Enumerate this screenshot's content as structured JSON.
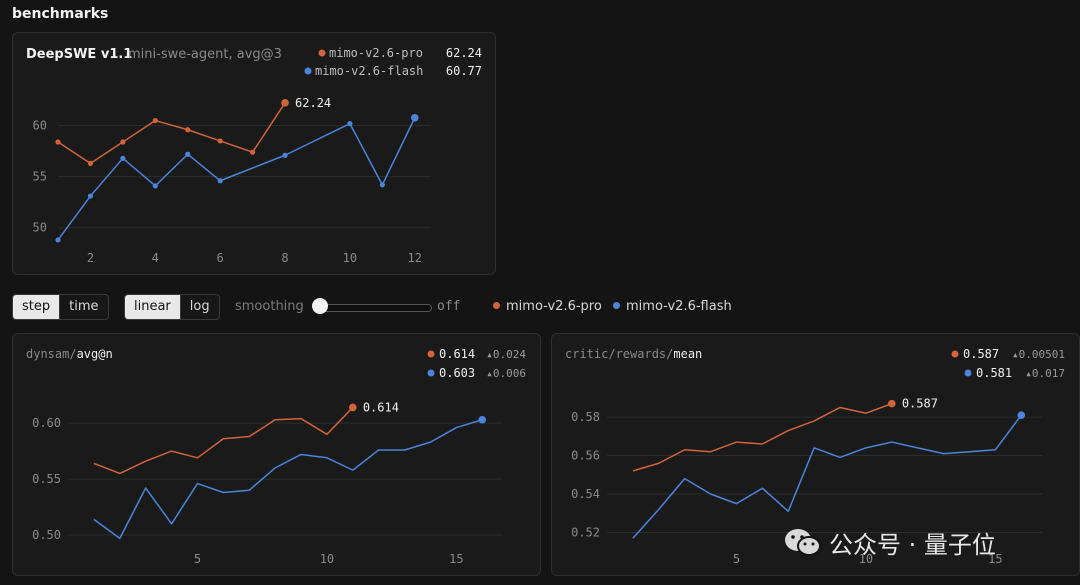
{
  "header": {
    "title": "benchmarks"
  },
  "colors": {
    "pro": "#d2643a",
    "flash": "#4b84dc",
    "grid": "#2c2c2c",
    "tick": "#8a8a8a"
  },
  "controls": {
    "xaxis_options": [
      "step",
      "time"
    ],
    "xaxis_selected": "step",
    "scale_options": [
      "linear",
      "log"
    ],
    "scale_selected": "linear",
    "smoothing_label": "smoothing",
    "smoothing_state": "off",
    "smoothing_value": 0,
    "legend": [
      "mimo-v2.6-pro",
      "mimo-v2.6-flash"
    ]
  },
  "watermark": {
    "text": "公众号 · 量子位",
    "icon": "wechat-icon"
  },
  "chart_data": [
    {
      "type": "line",
      "title": "DeepSWE v1.1",
      "subtitle": "mini-swe-agent, avg@3",
      "legend": [
        {
          "name": "mimo-v2.6-pro",
          "value": "62.24"
        },
        {
          "name": "mimo-v2.6-flash",
          "value": "60.77"
        }
      ],
      "xticks": [
        2,
        4,
        6,
        8,
        10,
        12
      ],
      "yticks": [
        50,
        55,
        60
      ],
      "xlim": [
        1,
        12.5
      ],
      "ylim": [
        48.5,
        63.2
      ],
      "grid": true,
      "series": [
        {
          "name": "mimo-v2.6-pro",
          "color_key": "pro",
          "end_label": "62.24",
          "x": [
            1,
            2,
            3,
            4,
            5,
            6,
            7,
            8
          ],
          "y": [
            58.4,
            56.3,
            58.4,
            60.5,
            59.6,
            58.5,
            57.4,
            62.24
          ]
        },
        {
          "name": "mimo-v2.6-flash",
          "color_key": "flash",
          "end_label": "",
          "x": [
            1,
            2,
            3,
            4,
            5,
            6,
            8,
            10,
            11,
            12
          ],
          "y": [
            48.8,
            53.1,
            56.8,
            54.1,
            57.2,
            54.6,
            57.1,
            60.2,
            54.2,
            60.77
          ]
        }
      ]
    },
    {
      "type": "line",
      "title_prefix": "dynsam/",
      "title": "avg@n",
      "legend": [
        {
          "name": "mimo-v2.6-pro",
          "value": "0.614",
          "delta": "▴0.024"
        },
        {
          "name": "mimo-v2.6-flash",
          "value": "0.603",
          "delta": "▴0.006"
        }
      ],
      "xticks": [
        5,
        10,
        15
      ],
      "yticks": [
        0.5,
        0.55,
        0.6
      ],
      "ytick_labels": [
        "0.50",
        "0.55",
        "0.60"
      ],
      "xlim": [
        0,
        16.8
      ],
      "ylim": [
        0.492,
        0.626
      ],
      "grid": true,
      "series": [
        {
          "name": "mimo-v2.6-pro",
          "color_key": "pro",
          "end_label": "0.614",
          "x": [
            1,
            2,
            3,
            4,
            5,
            6,
            7,
            8,
            9,
            10,
            11
          ],
          "y": [
            0.564,
            0.555,
            0.566,
            0.575,
            0.569,
            0.586,
            0.588,
            0.603,
            0.604,
            0.59,
            0.614
          ]
        },
        {
          "name": "mimo-v2.6-flash",
          "color_key": "flash",
          "end_label": "",
          "x": [
            1,
            2,
            3,
            4,
            5,
            6,
            7,
            8,
            9,
            10,
            11,
            12,
            13,
            14,
            15,
            16
          ],
          "y": [
            0.514,
            0.497,
            0.542,
            0.51,
            0.546,
            0.538,
            0.54,
            0.56,
            0.572,
            0.569,
            0.558,
            0.576,
            0.576,
            0.583,
            0.596,
            0.603
          ]
        }
      ]
    },
    {
      "type": "line",
      "title_prefix": "critic/rewards/",
      "title": "mean",
      "legend": [
        {
          "name": "mimo-v2.6-pro",
          "value": "0.587",
          "delta": "▴0.00501"
        },
        {
          "name": "mimo-v2.6-flash",
          "value": "0.581",
          "delta": "▴0.017"
        }
      ],
      "xticks": [
        5,
        10,
        15
      ],
      "yticks": [
        0.52,
        0.54,
        0.56,
        0.58
      ],
      "ytick_labels": [
        "0.52",
        "0.54",
        "0.56",
        "0.58"
      ],
      "xlim": [
        0,
        16.8
      ],
      "ylim": [
        0.514,
        0.592
      ],
      "grid": true,
      "series": [
        {
          "name": "mimo-v2.6-pro",
          "color_key": "pro",
          "end_label": "0.587",
          "x": [
            1,
            2,
            3,
            4,
            5,
            6,
            7,
            8,
            9,
            10,
            11
          ],
          "y": [
            0.552,
            0.556,
            0.563,
            0.562,
            0.567,
            0.566,
            0.573,
            0.578,
            0.585,
            0.582,
            0.587
          ]
        },
        {
          "name": "mimo-v2.6-flash",
          "color_key": "flash",
          "end_label": "",
          "x": [
            1,
            2,
            3,
            4,
            5,
            6,
            7,
            8,
            9,
            10,
            11,
            12,
            13,
            14,
            15,
            16
          ],
          "y": [
            0.517,
            0.532,
            0.548,
            0.54,
            0.535,
            0.543,
            0.531,
            0.564,
            0.559,
            0.564,
            0.567,
            0.564,
            0.561,
            0.562,
            0.563,
            0.581
          ]
        }
      ]
    }
  ]
}
